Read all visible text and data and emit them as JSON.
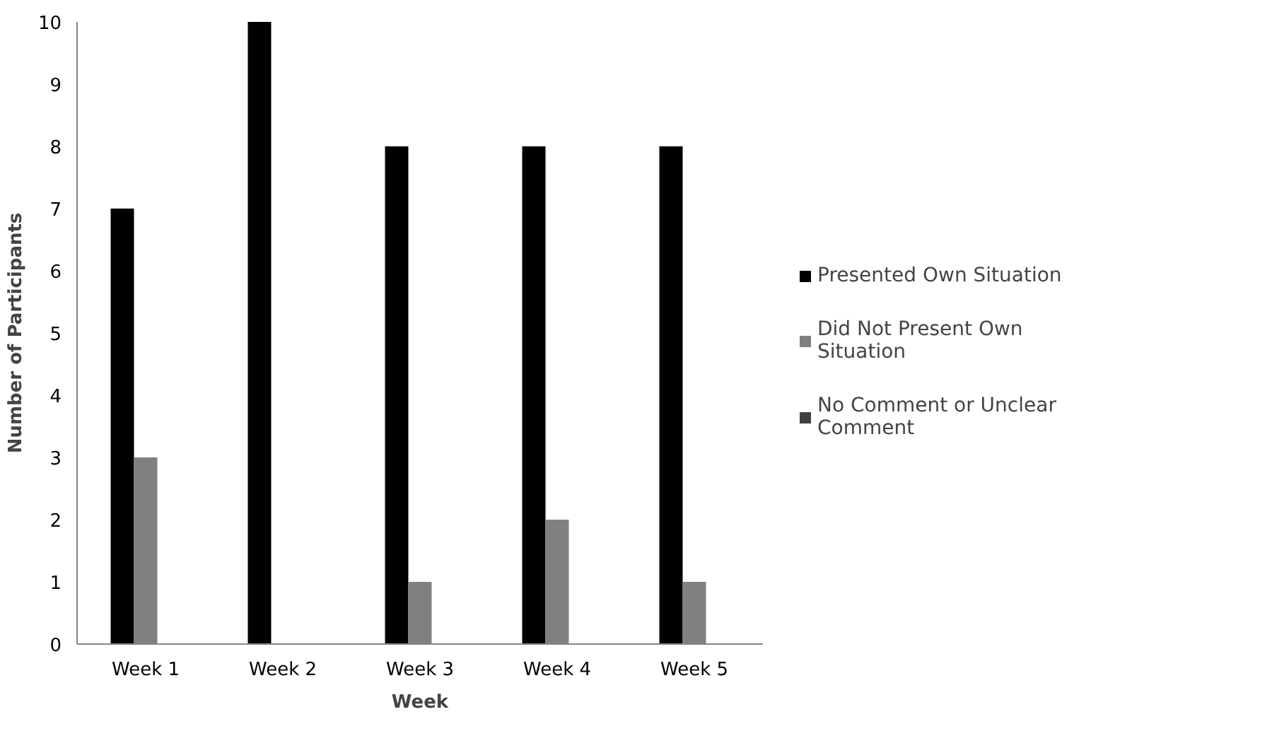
{
  "chart_data": {
    "type": "bar",
    "xlabel": "Week",
    "ylabel": "Number of Participants",
    "categories": [
      "Week 1",
      "Week 2",
      "Week 3",
      "Week 4",
      "Week 5"
    ],
    "series": [
      {
        "name": "Presented Own Situation",
        "color": "#000000",
        "values": [
          7,
          10,
          8,
          8,
          8
        ]
      },
      {
        "name": "Did Not Present Own Situation",
        "color": "#808080",
        "values": [
          3,
          0,
          1,
          2,
          1
        ]
      },
      {
        "name": "No Comment or Unclear Comment",
        "color": "#404040",
        "values": [
          0,
          0,
          0,
          0,
          0
        ]
      }
    ],
    "ylim": [
      0,
      10
    ],
    "yticks": [
      0,
      1,
      2,
      3,
      4,
      5,
      6,
      7,
      8,
      9,
      10
    ],
    "grid": false,
    "legend": "right"
  }
}
